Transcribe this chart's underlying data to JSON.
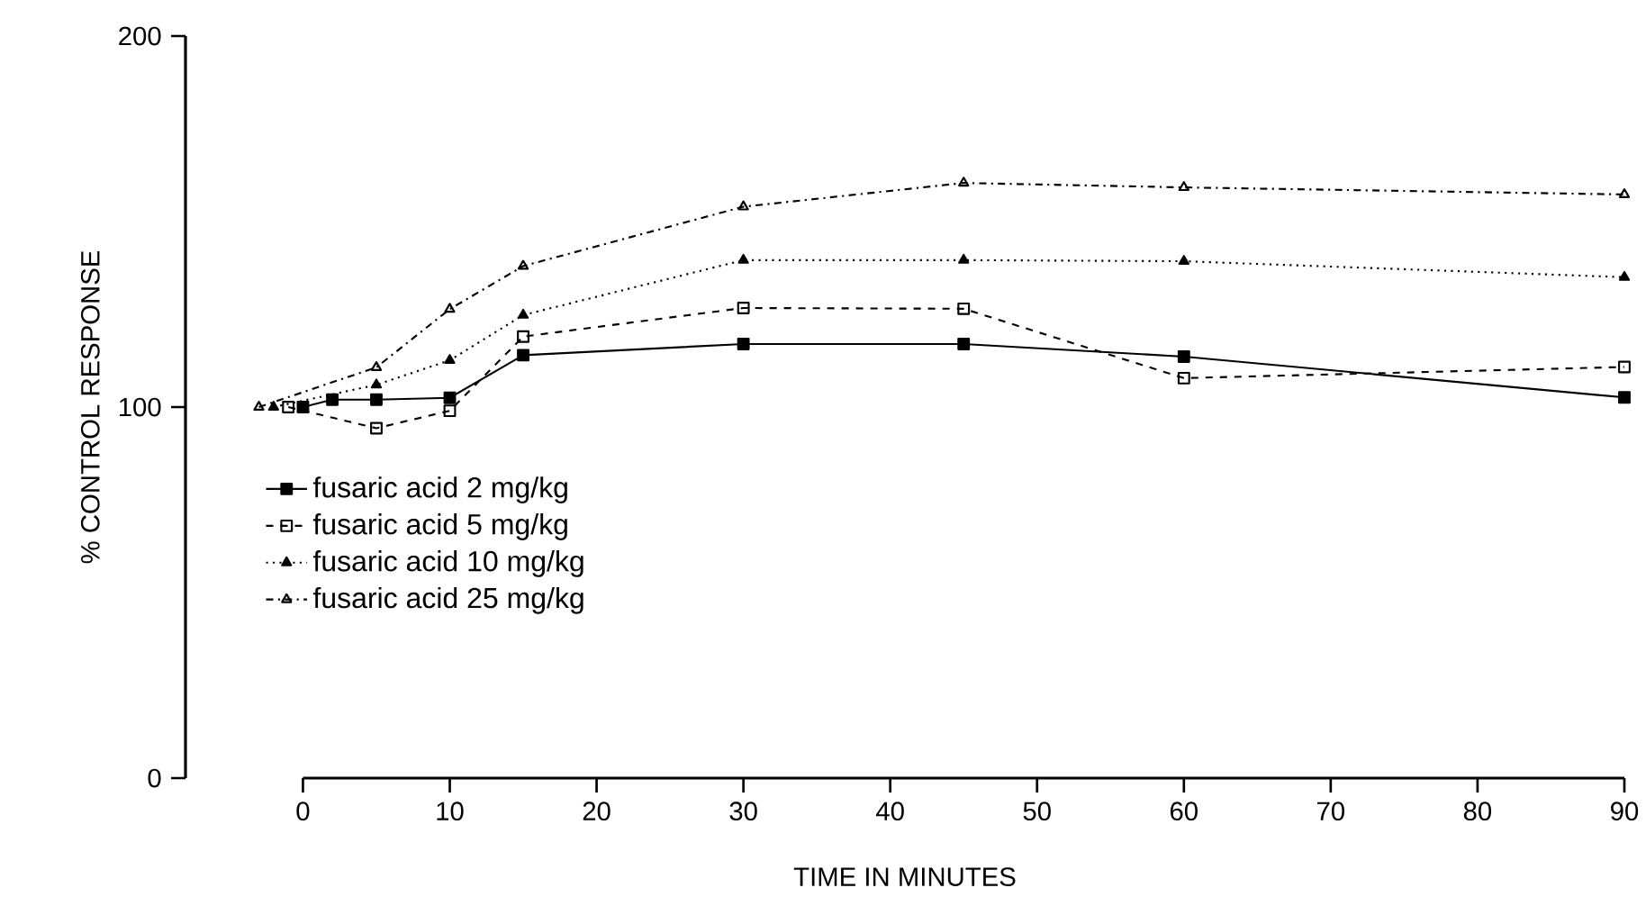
{
  "chart_data": {
    "type": "line",
    "xlabel": "TIME IN MINUTES",
    "ylabel": "% CONTROL RESPONSE",
    "xlim": [
      -8,
      90
    ],
    "ylim": [
      0,
      200
    ],
    "xticks": [
      0,
      10,
      20,
      30,
      40,
      50,
      60,
      70,
      80,
      90
    ],
    "yticks": [
      0,
      100,
      200
    ],
    "grid": false,
    "legend": "left",
    "series": [
      {
        "name": "fusaric acid 2 mg/kg",
        "color": "#000000",
        "marker": "square",
        "line_style": "solid",
        "x": [
          0,
          2,
          5,
          10,
          15,
          30,
          45,
          60,
          90
        ],
        "values": [
          100,
          102,
          102,
          102.5,
          114,
          117,
          117,
          113.6,
          102.6
        ]
      },
      {
        "name": "fusaric acid 5 mg/kg",
        "color": "#000000",
        "marker": "square",
        "line_style": "dashed",
        "x": [
          -1,
          5,
          10,
          15,
          30,
          45,
          60,
          90
        ],
        "values": [
          100,
          94.3,
          99,
          119,
          126.7,
          126.5,
          107.8,
          110.8
        ]
      },
      {
        "name": "fusaric acid 10 mg/kg",
        "color": "#000000",
        "marker": "triangle",
        "line_style": "dotted",
        "x": [
          -2,
          5,
          10,
          15,
          30,
          45,
          60,
          90
        ],
        "values": [
          100,
          106,
          112.6,
          124.8,
          139.6,
          139.6,
          139.3,
          135
        ]
      },
      {
        "name": "fusaric acid 25 mg/kg",
        "color": "#000000",
        "marker": "triangle",
        "line_style": "dashdot",
        "x": [
          -3,
          5,
          10,
          15,
          30,
          45,
          60,
          90
        ],
        "values": [
          100,
          110.7,
          126.4,
          138,
          154,
          160.4,
          159.2,
          157.3
        ]
      }
    ]
  }
}
